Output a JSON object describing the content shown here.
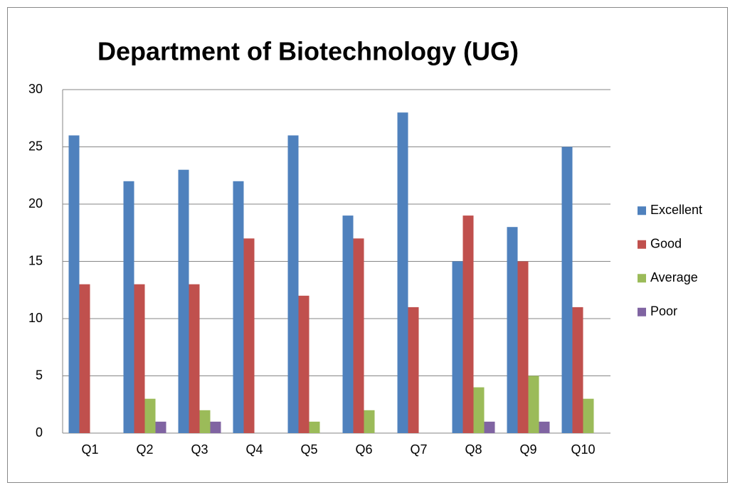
{
  "chart_data": {
    "type": "bar",
    "title": "Department of Biotechnology (UG)",
    "categories": [
      "Q1",
      "Q2",
      "Q3",
      "Q4",
      "Q5",
      "Q6",
      "Q7",
      "Q8",
      "Q9",
      "Q10"
    ],
    "series": [
      {
        "name": "Excellent",
        "color": "#4f81bd",
        "values": [
          26,
          22,
          23,
          22,
          26,
          19,
          28,
          15,
          18,
          25
        ]
      },
      {
        "name": "Good",
        "color": "#c0504d",
        "values": [
          13,
          13,
          13,
          17,
          12,
          17,
          11,
          19,
          15,
          11
        ]
      },
      {
        "name": "Average",
        "color": "#9bbb59",
        "values": [
          0,
          3,
          2,
          0,
          1,
          2,
          0,
          4,
          5,
          3
        ]
      },
      {
        "name": "Poor",
        "color": "#8064a2",
        "values": [
          0,
          1,
          1,
          0,
          0,
          0,
          0,
          1,
          1,
          0
        ]
      }
    ],
    "ylim": [
      0,
      30
    ],
    "yticks": [
      0,
      5,
      10,
      15,
      20,
      25,
      30
    ],
    "grid": true,
    "legend": "right"
  }
}
